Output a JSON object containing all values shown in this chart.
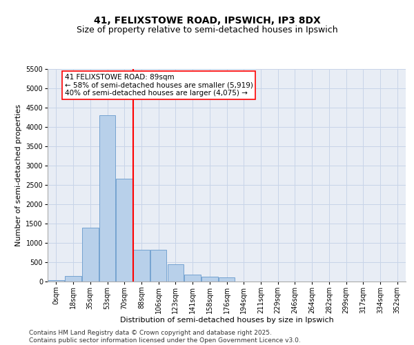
{
  "title_line1": "41, FELIXSTOWE ROAD, IPSWICH, IP3 8DX",
  "title_line2": "Size of property relative to semi-detached houses in Ipswich",
  "xlabel": "Distribution of semi-detached houses by size in Ipswich",
  "ylabel": "Number of semi-detached properties",
  "bin_labels": [
    "0sqm",
    "18sqm",
    "35sqm",
    "53sqm",
    "70sqm",
    "88sqm",
    "106sqm",
    "123sqm",
    "141sqm",
    "158sqm",
    "176sqm",
    "194sqm",
    "211sqm",
    "229sqm",
    "246sqm",
    "264sqm",
    "282sqm",
    "299sqm",
    "317sqm",
    "334sqm",
    "352sqm"
  ],
  "bar_values": [
    30,
    130,
    1380,
    4300,
    2650,
    820,
    820,
    430,
    175,
    120,
    95,
    0,
    0,
    0,
    0,
    0,
    0,
    0,
    0,
    0,
    0
  ],
  "bar_color": "#b8d0ea",
  "bar_edge_color": "#6699cc",
  "vline_bin_index": 5,
  "annotation_text": "41 FELIXSTOWE ROAD: 89sqm\n← 58% of semi-detached houses are smaller (5,919)\n40% of semi-detached houses are larger (4,075) →",
  "annotation_box_color": "white",
  "annotation_box_edge_color": "red",
  "vline_color": "red",
  "ylim": [
    0,
    5500
  ],
  "yticks": [
    0,
    500,
    1000,
    1500,
    2000,
    2500,
    3000,
    3500,
    4000,
    4500,
    5000,
    5500
  ],
  "grid_color": "#c8d4e8",
  "background_color": "#e8edf5",
  "footer_text": "Contains HM Land Registry data © Crown copyright and database right 2025.\nContains public sector information licensed under the Open Government Licence v3.0.",
  "title_fontsize": 10,
  "subtitle_fontsize": 9,
  "axis_label_fontsize": 8,
  "tick_fontsize": 7,
  "annotation_fontsize": 7.5,
  "footer_fontsize": 6.5
}
